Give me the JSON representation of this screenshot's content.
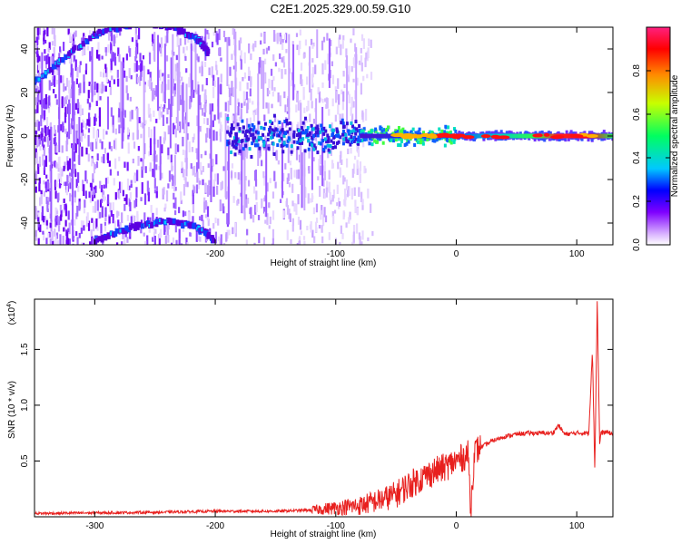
{
  "title": "C2E1.2025.329.00.59.G10",
  "chart_data": [
    {
      "type": "heatmap",
      "name": "spectrogram",
      "xlabel": "Height of straight line (km)",
      "ylabel": "Frequency (Hz)",
      "xlim": [
        -350,
        130
      ],
      "ylim": [
        -50,
        50
      ],
      "xticks": [
        -300,
        -200,
        -100,
        0,
        100
      ],
      "yticks": [
        -40,
        -20,
        0,
        20,
        40
      ],
      "colorbar": {
        "label": "Normalized spectral amplitude",
        "range": [
          0,
          1
        ],
        "ticks": [
          "0.0",
          "0.2",
          "0.4",
          "0.6",
          "0.8"
        ],
        "colormap": [
          "#ffffff",
          "#7f00ff",
          "#0000ff",
          "#00ffff",
          "#00ff00",
          "#ffff00",
          "#ff0000",
          "#ff00ff"
        ]
      },
      "features": {
        "carrier_line": {
          "frequency": 0,
          "x_start": -190,
          "x_end": 130,
          "peak_amplitude": 0.95
        },
        "arc_upper": {
          "points": [
            [
              -350,
              25
            ],
            [
              -320,
              38
            ],
            [
              -295,
              48
            ],
            [
              -260,
              52
            ],
            [
              -235,
              50
            ],
            [
              -215,
              45
            ],
            [
              -205,
              38
            ]
          ]
        },
        "arc_lower": {
          "points": [
            [
              -300,
              -48
            ],
            [
              -270,
              -42
            ],
            [
              -240,
              -39
            ],
            [
              -215,
              -42
            ],
            [
              -200,
              -48
            ]
          ]
        },
        "noise_region_x": [
          -350,
          -80
        ]
      }
    },
    {
      "type": "line",
      "name": "snr",
      "xlabel": "Height of straight line (km)",
      "ylabel": "SNR (10 * v/v)",
      "scale_label": "(x10",
      "scale_exp": "4",
      "xlim": [
        -350,
        130
      ],
      "ylim": [
        0,
        1.95
      ],
      "xticks": [
        -300,
        -200,
        -100,
        0,
        100
      ],
      "yticks": [
        "0.5",
        "1.0",
        "1.5"
      ],
      "ytick_values": [
        0.5,
        1.0,
        1.5
      ],
      "color": "#e8201e",
      "series": [
        {
          "x": [
            -350,
            -250,
            -200,
            -150,
            -120,
            -100,
            -80,
            -60,
            -50,
            -40,
            -30,
            -20,
            -10,
            0,
            10,
            12,
            15,
            20,
            30,
            40,
            50,
            60,
            80,
            85,
            90,
            100,
            110,
            113,
            115,
            117,
            119,
            120,
            125,
            130
          ],
          "y": [
            0.03,
            0.04,
            0.05,
            0.05,
            0.06,
            0.08,
            0.1,
            0.16,
            0.2,
            0.28,
            0.34,
            0.4,
            0.44,
            0.5,
            0.56,
            0.05,
            0.58,
            0.62,
            0.68,
            0.72,
            0.74,
            0.75,
            0.75,
            0.82,
            0.74,
            0.75,
            0.75,
            1.5,
            0.4,
            1.95,
            0.65,
            0.75,
            0.76,
            0.74
          ]
        }
      ]
    }
  ]
}
